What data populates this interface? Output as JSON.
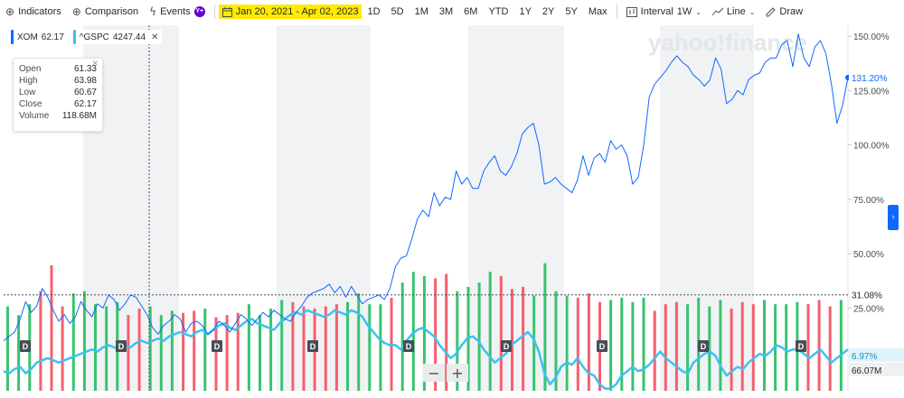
{
  "toolbar": {
    "indicators": "Indicators",
    "comparison": "Comparison",
    "events": "Events",
    "events_badge": "Y+",
    "date_range": "Jan 20, 2021 - Apr 02, 2023",
    "periods": [
      "1D",
      "5D",
      "1M",
      "3M",
      "6M",
      "YTD",
      "1Y",
      "2Y",
      "5Y",
      "Max"
    ],
    "interval_label": "Interval",
    "interval_value": "1W",
    "line_label": "Line",
    "draw_label": "Draw"
  },
  "legend": [
    {
      "symbol": "XOM",
      "value": "62.17",
      "color": "#0f69ff"
    },
    {
      "symbol": "^GSPC",
      "value": "4247.44",
      "color": "#3dc2ee"
    }
  ],
  "ohlc": {
    "open_label": "Open",
    "open": "61.33",
    "high_label": "High",
    "high": "63.98",
    "low_label": "Low",
    "low": "60.67",
    "close_label": "Close",
    "close": "62.17",
    "volume_label": "Volume",
    "volume": "118.68M"
  },
  "watermark": "yahoo!finance",
  "price_badges": {
    "xom": "131.20%",
    "crosshair": "31.08%",
    "gspc": "6.97%",
    "volume": "66.07M"
  },
  "colors": {
    "xom_line": "#0f69ff",
    "gspc_line": "#3dc2ee",
    "vol_up": "#3ac26f",
    "vol_down": "#f4606e",
    "band": "#f0f2f4"
  },
  "zoom": {
    "minus": "−",
    "plus": "+"
  },
  "dividend_marker": "D",
  "chart_data": {
    "type": "line",
    "y_axis_unit": "%",
    "y_ticks": [
      "150.00%",
      "125.00%",
      "100.00%",
      "75.00%",
      "50.00%",
      "25.00%"
    ],
    "y_tick_values": [
      150,
      125,
      100,
      75,
      50,
      25
    ],
    "ylim": [
      -13,
      155
    ],
    "series": [
      {
        "name": "XOM",
        "values": [
          10,
          12,
          14,
          20,
          28,
          23,
          26,
          34,
          30,
          24,
          19,
          22,
          18,
          21,
          28,
          24,
          21,
          27,
          25,
          31,
          29,
          24,
          27,
          31,
          30,
          26,
          22,
          16,
          13,
          17,
          19,
          22,
          20,
          14,
          18,
          19,
          17,
          13,
          15,
          19,
          17,
          14,
          18,
          22,
          20,
          17,
          20,
          23,
          21,
          24,
          22,
          20,
          19,
          23,
          26,
          30,
          32,
          33,
          34,
          36,
          32,
          35,
          30,
          35,
          31,
          27,
          29,
          30,
          31,
          29,
          34,
          44,
          48,
          49,
          57,
          66,
          70,
          67,
          78,
          72,
          76,
          75,
          88,
          82,
          85,
          80,
          80,
          88,
          92,
          95,
          88,
          86,
          90,
          96,
          105,
          108,
          110,
          100,
          82,
          83,
          85,
          82,
          80,
          78,
          84,
          95,
          86,
          94,
          96,
          92,
          102,
          98,
          100,
          95,
          82,
          85,
          100,
          122,
          128,
          131,
          134,
          138,
          141,
          138,
          136,
          132,
          130,
          127,
          130,
          140,
          135,
          119,
          121,
          125,
          123,
          130,
          132,
          133,
          138,
          140,
          140,
          146,
          148,
          136,
          151,
          140,
          136,
          145,
          148,
          142,
          128,
          110,
          118,
          131
        ]
      },
      {
        "name": "^GSPC",
        "values": [
          -4,
          -5,
          -3,
          -2,
          -5,
          -3,
          0,
          1,
          2,
          1,
          0,
          1,
          2,
          3,
          4,
          5,
          6,
          5,
          7,
          8,
          7,
          6,
          8,
          7,
          9,
          10,
          9,
          10,
          11,
          10,
          12,
          13,
          14,
          13,
          12,
          14,
          15,
          13,
          15,
          17,
          18,
          16,
          15,
          17,
          19,
          20,
          18,
          17,
          16,
          15,
          18,
          20,
          22,
          23,
          22,
          24,
          23,
          22,
          21,
          22,
          24,
          23,
          22,
          24,
          23,
          21,
          17,
          14,
          11,
          9,
          8,
          8,
          6,
          10,
          13,
          15,
          16,
          14,
          12,
          8,
          5,
          2,
          4,
          8,
          11,
          12,
          10,
          6,
          3,
          0,
          2,
          4,
          8,
          10,
          12,
          14,
          11,
          5,
          -5,
          -10,
          -7,
          -2,
          0,
          -1,
          2,
          -2,
          -5,
          -6,
          -10,
          -12,
          -12,
          -10,
          -6,
          -4,
          -2,
          -4,
          -3,
          -1,
          2,
          5,
          2,
          0,
          -2,
          -4,
          -5,
          0,
          2,
          4,
          5,
          3,
          -2,
          -6,
          -4,
          -2,
          -3,
          0,
          2,
          4,
          3,
          5,
          8,
          7,
          5,
          6,
          6,
          4,
          2,
          4,
          6,
          3,
          0,
          2,
          4,
          6
        ]
      }
    ],
    "volume_up": [
      1,
      0,
      1,
      0,
      1,
      1,
      0,
      1,
      0,
      1,
      0,
      1,
      1,
      0,
      1,
      0,
      1,
      1,
      1,
      0,
      1,
      0,
      0,
      1,
      0,
      1,
      1,
      0,
      1,
      0,
      1,
      1,
      0,
      1,
      0,
      0,
      1,
      1,
      0,
      1,
      0,
      1,
      0,
      1,
      1,
      0,
      1,
      0,
      1,
      0,
      1,
      1,
      0,
      1,
      0,
      1,
      0,
      1,
      0,
      1,
      0,
      1,
      1,
      0,
      1,
      0,
      1,
      0,
      1,
      1,
      0,
      1,
      1,
      0,
      1,
      0,
      1,
      1,
      0,
      1,
      0,
      1,
      1,
      0,
      1,
      0,
      1,
      0,
      1,
      1,
      0,
      1,
      0,
      1,
      0,
      1,
      1,
      0,
      1,
      0,
      1,
      0,
      1,
      1,
      0,
      1,
      0,
      1,
      0,
      1,
      1,
      0,
      1,
      0,
      1,
      0,
      1,
      1,
      0,
      1,
      0,
      1,
      0,
      1,
      1,
      0,
      1,
      0,
      1,
      0,
      1,
      1,
      0,
      1,
      0,
      1,
      0,
      1,
      1,
      0,
      1,
      0,
      1,
      0,
      1,
      1,
      0,
      1,
      0,
      1,
      0,
      1,
      1,
      0
    ],
    "volume_values": [
      78,
      76,
      70,
      72,
      80,
      95,
      92,
      100,
      116,
      96,
      78,
      84,
      90,
      70,
      92,
      72,
      80,
      98,
      78,
      86,
      82,
      84,
      70,
      80,
      76,
      84,
      78,
      70,
      70,
      80,
      74,
      76,
      72,
      70,
      74,
      72,
      76,
      70,
      68,
      72,
      70,
      74,
      72,
      78,
      80,
      74,
      70,
      72,
      76,
      80,
      84,
      78,
      82,
      80,
      78,
      84,
      76,
      82,
      78,
      84,
      80,
      76,
      82,
      86,
      90,
      84,
      80,
      82,
      80,
      84,
      86,
      92,
      100,
      108,
      110,
      94,
      106,
      118,
      104,
      146,
      108,
      96,
      92,
      88,
      96,
      104,
      100,
      96,
      110,
      116,
      106,
      100,
      94,
      104,
      96,
      100,
      88,
      92,
      118,
      86,
      92,
      84,
      88,
      84,
      86,
      88,
      90,
      86,
      82,
      80,
      84,
      78,
      86,
      88,
      82,
      84,
      86,
      80,
      74,
      78,
      80,
      76,
      82,
      78,
      80,
      84,
      86,
      80,
      78,
      82,
      84,
      80,
      76,
      78,
      82,
      86,
      80,
      78,
      84,
      82,
      80,
      86,
      80,
      78,
      82,
      84,
      80,
      76,
      84,
      88,
      78,
      80,
      84,
      80
    ],
    "volume_axis_label": "66.07M"
  }
}
